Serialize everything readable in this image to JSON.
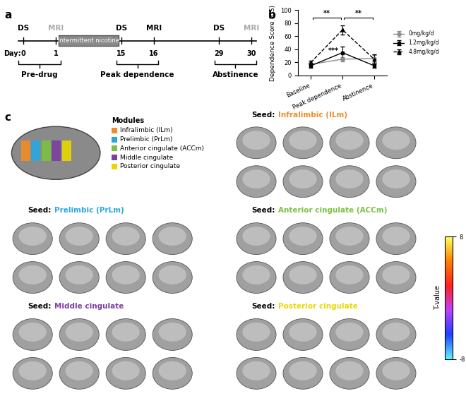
{
  "panel_letters": [
    "a",
    "b",
    "c"
  ],
  "timeline": {
    "day_label": "Day:",
    "ds_text": "DS",
    "mri_text": "MRI",
    "treatment": {
      "text": "Intermittent nicotine",
      "start_day": 1,
      "end_day": 15
    },
    "sessions": [
      {
        "ds_day": 0,
        "mri_day": 1,
        "mri_acquired": false,
        "name": "Pre-drug"
      },
      {
        "ds_day": 15,
        "mri_day": 16,
        "mri_acquired": true,
        "name": "Peak dependence"
      },
      {
        "ds_day": 29,
        "mri_day": 30,
        "mri_acquired": false,
        "name": "Abstinence"
      }
    ]
  },
  "chart_data": {
    "type": "line",
    "categories": [
      "Baseline",
      "Peak dependence",
      "Abstinence"
    ],
    "ylabel": "Dependence Score (DS)",
    "ylim": [
      0,
      100
    ],
    "yticks": [
      0,
      20,
      40,
      60,
      80,
      100
    ],
    "legend": "right",
    "series": [
      {
        "name": "0mg/kg/d",
        "color": "#8c8c8c",
        "marker": "circle",
        "line_style": "solid",
        "values": [
          17,
          25,
          26
        ],
        "errors": [
          2,
          3,
          5
        ]
      },
      {
        "name": "1.2mg/kg/d",
        "color": "#000000",
        "marker": "square",
        "line_style": "solid",
        "values": [
          15,
          35,
          15
        ],
        "errors": [
          3,
          9,
          3
        ]
      },
      {
        "name": "4.8mg/kg/d",
        "color": "#000000",
        "marker": "triangle",
        "line_style": "dashed",
        "values": [
          20,
          70,
          25
        ],
        "errors": [
          3,
          7,
          7
        ]
      }
    ],
    "annotations": [
      {
        "text": "**",
        "from": "Baseline",
        "to": "Peak dependence"
      },
      {
        "text": "**",
        "from": "Peak dependence",
        "to": "Abstinence"
      },
      {
        "text": "***",
        "at": "Peak dependence"
      }
    ]
  },
  "connectivity": {
    "modules_title": "Modules",
    "seed_prefix": "Seed:",
    "modules": [
      {
        "name": "Infralimbic (ILm)",
        "color": "#f28c28"
      },
      {
        "name": "Prelimbic (PrLm)",
        "color": "#29a8e0"
      },
      {
        "name": "Anterior cingulate (ACCm)",
        "color": "#7cc142"
      },
      {
        "name": "Middle cingulate",
        "color": "#7b3fa0"
      },
      {
        "name": "Posterior cingulate",
        "color": "#e8d800"
      }
    ],
    "colorbar": {
      "label": "T-value",
      "range": [
        -8,
        8
      ],
      "ticks": [
        8,
        -8
      ]
    }
  }
}
